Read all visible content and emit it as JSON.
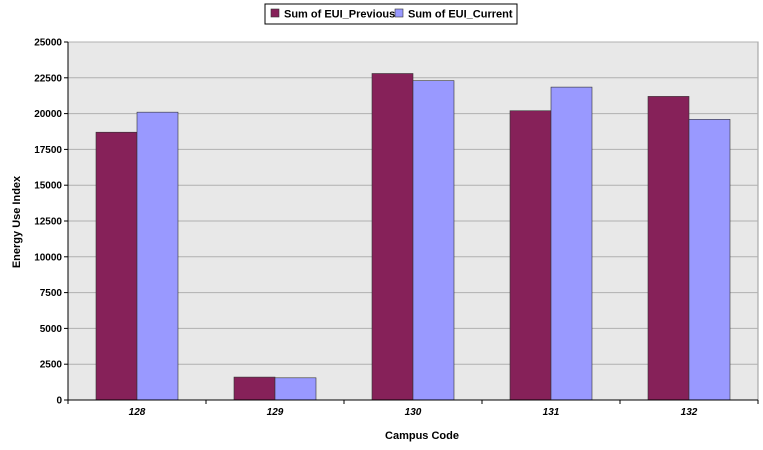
{
  "chart_data": {
    "type": "bar",
    "categories": [
      "128",
      "129",
      "130",
      "131",
      "132"
    ],
    "series": [
      {
        "name": "Sum of EUI_Previous",
        "color": "#862159",
        "values": [
          18700,
          1600,
          22800,
          20200,
          21200
        ]
      },
      {
        "name": "Sum of EUI_Current",
        "color": "#9999ff",
        "values": [
          20100,
          1550,
          22300,
          21850,
          19600
        ]
      }
    ],
    "title": "",
    "xlabel": "Campus Code",
    "ylabel": "Energy Use Index",
    "ylim": [
      0,
      25000
    ],
    "yticks": [
      0,
      2500,
      5000,
      7500,
      10000,
      12500,
      15000,
      17500,
      20000,
      22500,
      25000
    ],
    "grid": true,
    "legend_position": "top",
    "plot_background": "#e8e8e8"
  }
}
